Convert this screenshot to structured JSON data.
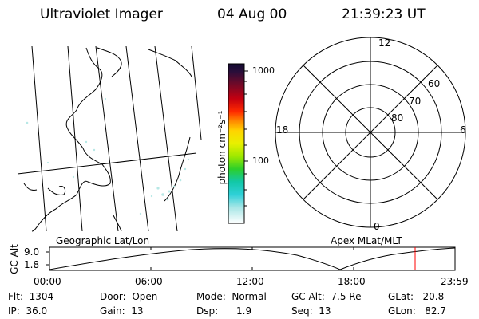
{
  "header": {
    "title": "Ultraviolet Imager",
    "date": "04 Aug 00",
    "time": "21:39:23 UT"
  },
  "colorbar": {
    "unit_label": "photon cm⁻²s⁻¹",
    "ticks": [
      "1000",
      "100"
    ]
  },
  "polar_plot": {
    "mlt_labels": {
      "top": "12",
      "left": "18",
      "right": "6",
      "bottom": "0"
    },
    "lat_labels": [
      "60",
      "70",
      "80"
    ]
  },
  "section_labels": {
    "left": "Geographic Lat/Lon",
    "right": "Apex MLat/MLT"
  },
  "orbit_plot": {
    "ylabel": "GC Alt",
    "yticks": [
      "9.0",
      "1.8"
    ],
    "xticks": [
      "00:00",
      "06:00",
      "12:00",
      "18:00",
      "23:59"
    ],
    "marker_color": "#ff0000"
  },
  "status": {
    "flt": "Flt:  1304",
    "ip": "IP:  36.0",
    "door": "Door:  Open",
    "gain": "Gain:  13",
    "mode": "Mode:  Normal",
    "dsp": "Dsp:      1.9",
    "gcalt": "GC Alt:  7.5 Re",
    "seq": "Seq:  13",
    "glat": "GLat:   20.8",
    "glon": "GLon:   82.7"
  }
}
